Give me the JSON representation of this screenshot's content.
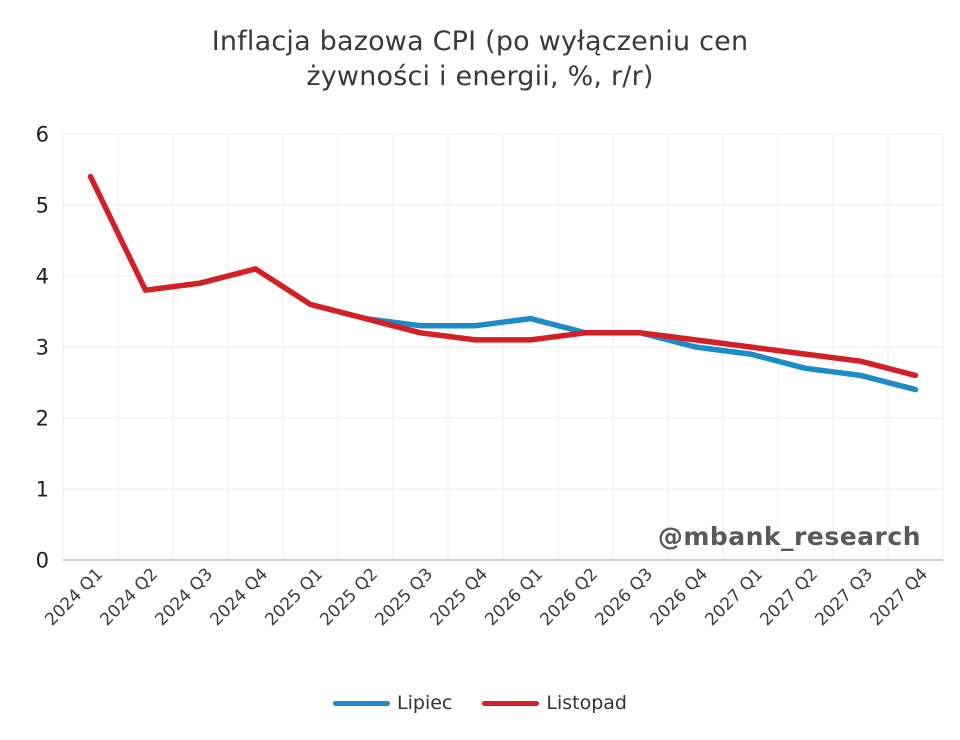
{
  "title": {
    "line1": "Inflacja bazowa CPI (po wyłączeniu cen",
    "line2": "żywności i energii, %, r/r)"
  },
  "watermark": "@mbank_research",
  "chart_data": {
    "type": "line",
    "categories": [
      "2024 Q1",
      "2024 Q2",
      "2024 Q3",
      "2024 Q4",
      "2025 Q1",
      "2025 Q2",
      "2025 Q3",
      "2025 Q4",
      "2026 Q1",
      "2026 Q2",
      "2026 Q3",
      "2026 Q4",
      "2027 Q1",
      "2027 Q2",
      "2027 Q3",
      "2027 Q4"
    ],
    "series": [
      {
        "name": "Lipiec",
        "color": "#1e8bc9",
        "values": [
          null,
          null,
          null,
          null,
          null,
          3.4,
          3.3,
          3.3,
          3.4,
          3.2,
          3.2,
          3.0,
          2.9,
          2.7,
          2.6,
          2.4
        ]
      },
      {
        "name": "Listopad",
        "color": "#d32027",
        "values": [
          5.4,
          3.8,
          3.9,
          4.1,
          3.6,
          3.4,
          3.2,
          3.1,
          3.1,
          3.2,
          3.2,
          3.1,
          3.0,
          2.9,
          2.8,
          2.6
        ]
      }
    ],
    "ylim": [
      0,
      6
    ],
    "yticks": [
      0,
      1,
      2,
      3,
      4,
      5,
      6
    ],
    "grid": true,
    "grid_color": "#ededed",
    "axis_color": "#c4c4c4",
    "legend_position": "bottom"
  }
}
